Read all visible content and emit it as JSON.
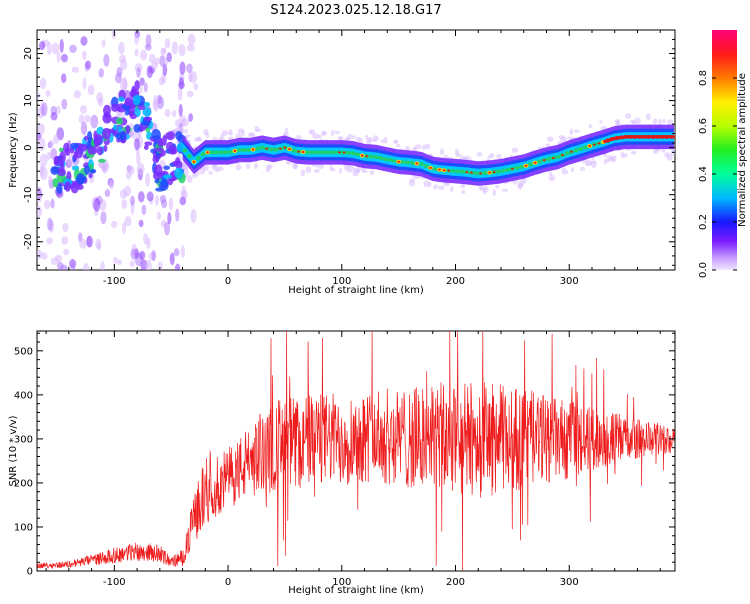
{
  "title": "S124.2023.025.12.18.G17",
  "colors": {
    "snr_line": "#ee1c1c",
    "spec_ridge": "#e01818",
    "spec_core": "#1f4cff",
    "spec_halo": "#7a2cff",
    "spec_mid": "#22d06a",
    "spec_accent": "#ffd000"
  },
  "chart_data": [
    {
      "type": "heatmap",
      "title": "S124.2023.025.12.18.G17",
      "xlabel": "Height of straight line (km)",
      "ylabel": "Frequency (Hz)",
      "xlim": [
        -168,
        393
      ],
      "ylim": [
        -26,
        25
      ],
      "x_ticks": [
        -100,
        0,
        100,
        200,
        300
      ],
      "y_ticks": [
        -20,
        -10,
        0,
        10,
        20
      ],
      "ridge": {
        "x": [
          -40,
          -35,
          -30,
          -20,
          -10,
          0,
          10,
          20,
          30,
          40,
          50,
          60,
          70,
          80,
          90,
          100,
          110,
          120,
          130,
          140,
          150,
          160,
          170,
          180,
          190,
          200,
          210,
          220,
          230,
          240,
          250,
          260,
          270,
          280,
          290,
          300,
          310,
          320,
          330,
          340,
          350,
          360,
          370,
          380,
          390
        ],
        "y": [
          0,
          -1.5,
          -3,
          -1,
          -1,
          -1,
          -0.5,
          -0.5,
          0,
          -0.5,
          0,
          -0.8,
          -1,
          -1,
          -1,
          -1,
          -1.2,
          -1.8,
          -2,
          -2.5,
          -3,
          -3.2,
          -3.5,
          -4.5,
          -4.8,
          -5,
          -5.2,
          -5.5,
          -5.3,
          -5,
          -4.5,
          -4,
          -3.2,
          -2.5,
          -2,
          -1,
          -0.3,
          0.5,
          1.2,
          2,
          2.3,
          2.3,
          2.3,
          2.3,
          2.3
        ]
      },
      "noisy_region": {
        "x": [
          -150,
          -140,
          -130,
          -120,
          -110,
          -100,
          -90,
          -80,
          -70,
          -60,
          -50
        ],
        "y": [
          -4,
          -5,
          -4,
          -2,
          2,
          5,
          7,
          9,
          3,
          -4,
          -2
        ]
      },
      "colorbar": {
        "label": "Normalized spectral amplitude",
        "range": [
          0.0,
          1.0
        ],
        "ticks": [
          "0.0",
          "0.2",
          "0.4",
          "0.6",
          "0.8"
        ],
        "tick_values": [
          0.0,
          0.2,
          0.4,
          0.6,
          0.8
        ]
      }
    },
    {
      "type": "line",
      "xlabel": "Height of straight line (km)",
      "ylabel": "SNR (10 * v/v)",
      "xlim": [
        -168,
        393
      ],
      "ylim": [
        0,
        545
      ],
      "x_ticks": [
        -100,
        0,
        100,
        200,
        300
      ],
      "y_ticks": [
        0,
        100,
        200,
        300,
        400,
        500
      ],
      "envelope": {
        "x": [
          -168,
          -140,
          -120,
          -100,
          -80,
          -60,
          -50,
          -40,
          -35,
          -30,
          -25,
          -20,
          -15,
          -10,
          -5,
          0,
          10,
          20,
          30,
          40,
          50,
          60,
          80,
          100,
          120,
          140,
          160,
          180,
          200,
          220,
          240,
          260,
          280,
          300,
          320,
          340,
          360,
          380,
          393
        ],
        "mean": [
          12,
          15,
          25,
          35,
          45,
          40,
          20,
          30,
          70,
          120,
          150,
          180,
          200,
          190,
          200,
          210,
          230,
          250,
          270,
          280,
          285,
          290,
          300,
          300,
          305,
          305,
          300,
          305,
          295,
          300,
          300,
          300,
          300,
          295,
          300,
          300,
          300,
          300,
          295
        ],
        "spread": [
          6,
          8,
          12,
          18,
          22,
          20,
          12,
          20,
          35,
          55,
          70,
          80,
          80,
          70,
          70,
          70,
          75,
          85,
          95,
          110,
          115,
          110,
          105,
          105,
          105,
          110,
          115,
          125,
          130,
          135,
          125,
          115,
          100,
          90,
          75,
          60,
          45,
          35,
          30
        ]
      },
      "peak_max": 545
    }
  ]
}
